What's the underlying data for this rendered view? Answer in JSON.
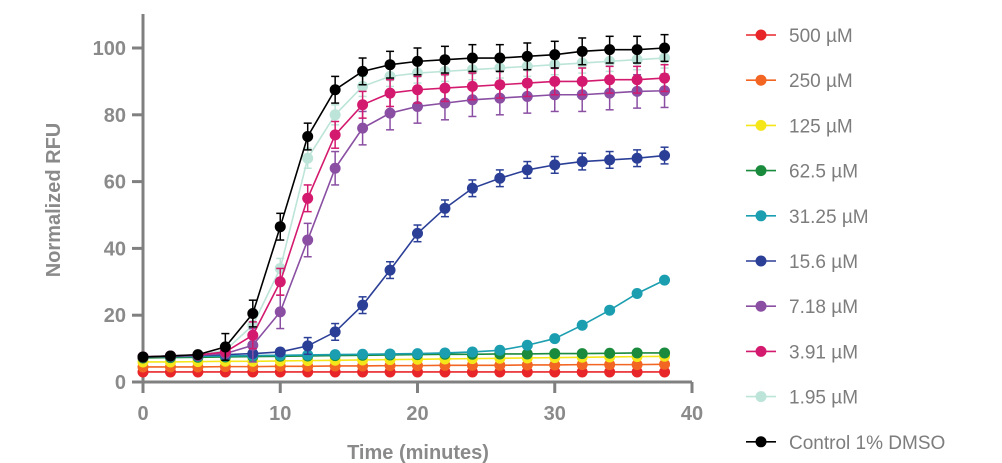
{
  "chart_data": {
    "type": "line",
    "title": "",
    "xlabel": "Time (minutes)",
    "ylabel": "Normalized RFU",
    "xlim": [
      0,
      40
    ],
    "ylim": [
      0,
      110
    ],
    "xticks": [
      0,
      10,
      20,
      30,
      40
    ],
    "yticks": [
      0,
      20,
      40,
      60,
      80,
      100
    ],
    "x": [
      0,
      2,
      4,
      6,
      8,
      10,
      12,
      14,
      16,
      18,
      20,
      22,
      24,
      26,
      28,
      30,
      32,
      34,
      36,
      38
    ],
    "legend_position": "right",
    "series": [
      {
        "name": "500 µM",
        "color": "#e8262a",
        "error": 0,
        "values": [
          3,
          3,
          3,
          3,
          3,
          3,
          3,
          3,
          3,
          3,
          3,
          3,
          3,
          3,
          3,
          3,
          3,
          3,
          3,
          3
        ]
      },
      {
        "name": "250 µM",
        "color": "#f26522",
        "error": 0,
        "values": [
          4.5,
          4.5,
          4.5,
          4.6,
          4.6,
          4.7,
          4.7,
          4.8,
          4.8,
          4.9,
          4.9,
          5,
          5,
          5,
          5.1,
          5.1,
          5.2,
          5.2,
          5.2,
          5.3
        ]
      },
      {
        "name": "125 µM",
        "color": "#f5e61a",
        "error": 0,
        "values": [
          6,
          6,
          6.1,
          6.2,
          6.2,
          6.3,
          6.4,
          6.5,
          6.6,
          6.7,
          6.8,
          6.9,
          7,
          7.1,
          7.2,
          7.3,
          7.4,
          7.5,
          7.6,
          7.7
        ]
      },
      {
        "name": "62.5 µM",
        "color": "#1a8a3c",
        "error": 0,
        "values": [
          7.2,
          7.3,
          7.4,
          7.5,
          7.6,
          7.7,
          7.8,
          7.9,
          8,
          8.1,
          8.2,
          8.3,
          8.3,
          8.4,
          8.4,
          8.5,
          8.5,
          8.6,
          8.7,
          8.7
        ]
      },
      {
        "name": "31.25 µM",
        "color": "#1b9eb0",
        "error": 0,
        "values": [
          7.5,
          7.6,
          7.7,
          7.8,
          7.9,
          8,
          8.1,
          8.2,
          8.3,
          8.4,
          8.5,
          8.7,
          9,
          9.5,
          11,
          13,
          17,
          21.5,
          26.5,
          30.5
        ]
      },
      {
        "name": "15.6 µM",
        "color": "#2b3f97",
        "error": 2.5,
        "values": [
          7.5,
          7.7,
          7.9,
          8.2,
          8.5,
          9,
          10.8,
          15,
          23,
          33.5,
          44.5,
          52,
          58,
          61,
          63.5,
          65,
          66,
          66.5,
          67,
          67.8
        ]
      },
      {
        "name": "7.18 µM",
        "color": "#8a4fa3",
        "error": 5,
        "values": [
          7.5,
          7.8,
          8,
          8.5,
          11,
          21,
          42.5,
          64,
          76,
          80.5,
          82.5,
          83.5,
          84.5,
          85,
          85.5,
          86,
          86,
          86.5,
          87,
          87.2
        ]
      },
      {
        "name": "3.91 µM",
        "color": "#d41a6e",
        "error": 4,
        "values": [
          7.5,
          7.8,
          8.1,
          9,
          14,
          30,
          55,
          74,
          83,
          86.5,
          87.5,
          88,
          88.5,
          89,
          89.5,
          90,
          90,
          90.5,
          90.5,
          91
        ]
      },
      {
        "name": "1.95 µM",
        "color": "#bde4d8",
        "error": 3,
        "values": [
          7.5,
          7.8,
          8.1,
          9.5,
          17,
          34,
          67,
          80,
          88.5,
          91.5,
          92.5,
          93,
          93.5,
          94,
          94.5,
          95,
          95.5,
          96,
          96.5,
          97
        ]
      },
      {
        "name": "Control 1% DMSO",
        "color": "#000000",
        "error": 4,
        "values": [
          7.5,
          7.8,
          8.2,
          10.5,
          20.5,
          46.5,
          73.5,
          87.5,
          93,
          95,
          96,
          96.5,
          97,
          97,
          97.5,
          98,
          99,
          99.5,
          99.5,
          100
        ]
      }
    ]
  }
}
